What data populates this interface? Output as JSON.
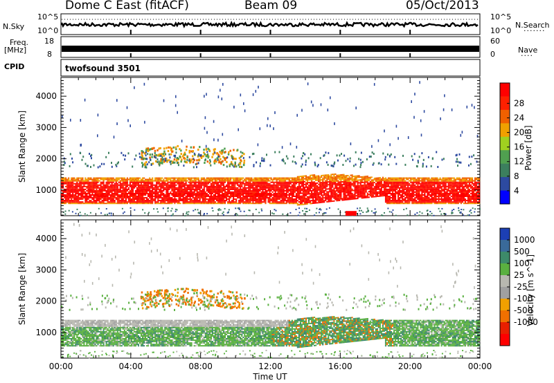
{
  "header": {
    "station": "Dome C East (fitACF)",
    "beam": "Beam 09",
    "date": "05/Oct/2013"
  },
  "strips": {
    "nsky_label": "N.Sky",
    "nsearch_label": "N.Search",
    "nsky_ticks": [
      "10^5",
      "10^0"
    ],
    "nsearch_ticks": [
      "10^5",
      "10^0"
    ],
    "freq_label_1": "Freq.",
    "freq_label_2": "[MHz]",
    "freq_ticks": [
      "18",
      "8"
    ],
    "nave_label": "Nave",
    "nave_ticks": [
      "60",
      "0"
    ],
    "cpid_label": "CPID",
    "cpid_value": "twofsound 3501"
  },
  "colors": {
    "power_scale": [
      "#0000ff",
      "#2d4aa0",
      "#3c7f5e",
      "#50a050",
      "#a0d020",
      "#f0a000",
      "#f06000",
      "#ff2000",
      "#ff0000"
    ],
    "velocity_scale": [
      "#1c3fb4",
      "#3a6a9a",
      "#3d8a6a",
      "#5ab040",
      "#b8b8b0",
      "#a0a0a0",
      "#f0a000",
      "#f07000",
      "#e82000",
      "#ff0000"
    ]
  },
  "chart_data": [
    {
      "type": "heatmap",
      "title": "",
      "quantity": "Power",
      "ylabel": "Slant Range [km]",
      "xlabel": "",
      "x_ticks": [
        "00:00",
        "04:00",
        "08:00",
        "12:00",
        "16:00",
        "20:00",
        "00:00"
      ],
      "y_ticks": [
        1000,
        2000,
        3000,
        4000
      ],
      "ylim": [
        180,
        4600
      ],
      "xlim_hours": [
        0,
        24
      ],
      "colorbar_label": "Power [dB]",
      "colorbar_ticks": [
        "4",
        "8",
        "12",
        "16",
        "20",
        "24",
        "28"
      ]
    },
    {
      "type": "heatmap",
      "title": "",
      "quantity": "Velocity",
      "ylabel": "Slant Range [km]",
      "xlabel": "Time UT",
      "x_ticks": [
        "00:00",
        "04:00",
        "08:00",
        "12:00",
        "16:00",
        "20:00",
        "00:00"
      ],
      "y_ticks": [
        1000,
        2000,
        3000,
        4000
      ],
      "ylim": [
        180,
        4600
      ],
      "xlim_hours": [
        0,
        24
      ],
      "colorbar_label": "Velocity [m s^-1]",
      "colorbar_ticks": [
        "1000",
        "500",
        "100",
        "25",
        "-25",
        "-100",
        "-500",
        "-1000"
      ]
    }
  ]
}
